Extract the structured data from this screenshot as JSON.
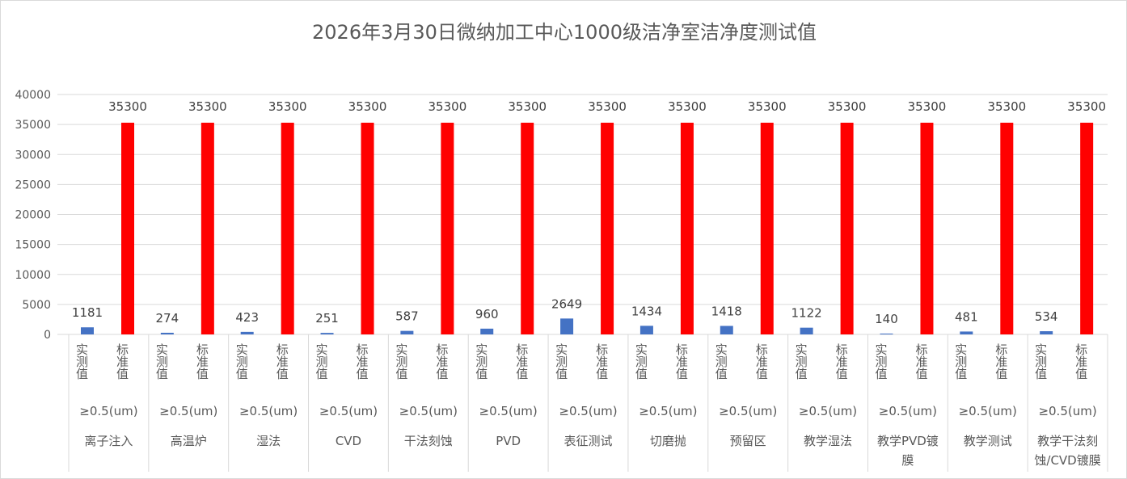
{
  "chart_data": {
    "type": "bar",
    "title": "2026年3月30日微纳加工中心1000级洁净室洁净度测试值",
    "ylim": [
      0,
      40000
    ],
    "yticks": [
      0,
      5000,
      10000,
      15000,
      20000,
      25000,
      30000,
      35000,
      40000
    ],
    "grid": true,
    "legend": "none",
    "sub_categories": [
      "实测值",
      "标准值"
    ],
    "size_label": "≥0.5(um)",
    "categories": [
      "离子注入",
      "高温炉",
      "湿法",
      "CVD",
      "干法刻蚀",
      "PVD",
      "表征测试",
      "切磨抛",
      "预留区",
      "教学湿法",
      "教学PVD镀膜",
      "教学测试",
      "教学干法刻蚀/CVD镀膜"
    ],
    "series": [
      {
        "name": "实测值",
        "color": "#4472c4",
        "values": [
          1181,
          274,
          423,
          251,
          587,
          960,
          2649,
          1434,
          1418,
          1122,
          140,
          481,
          534
        ]
      },
      {
        "name": "标准值",
        "color": "#ff0000",
        "values": [
          35300,
          35300,
          35300,
          35300,
          35300,
          35300,
          35300,
          35300,
          35300,
          35300,
          35300,
          35300,
          35300
        ]
      }
    ]
  }
}
